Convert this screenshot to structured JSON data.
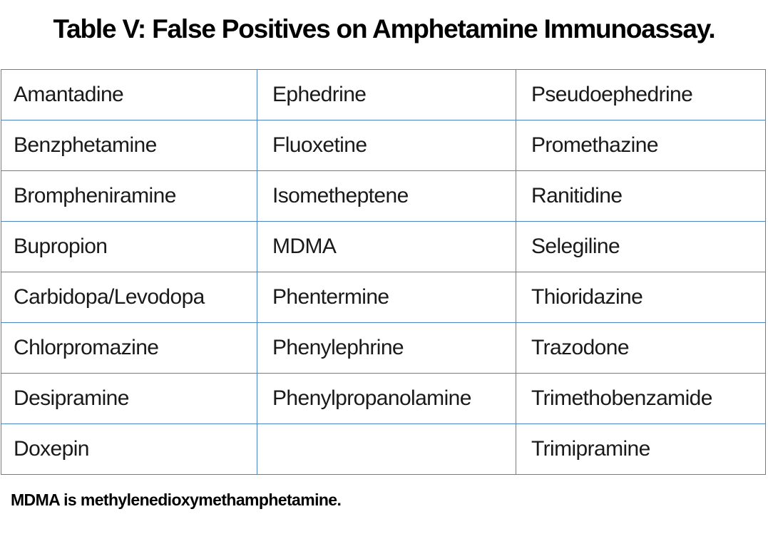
{
  "title": "Table V: False Positives on Amphetamine Immunoassay.",
  "rows": [
    [
      "Amantadine",
      "Ephedrine",
      "Pseudoephedrine"
    ],
    [
      "Benzphetamine",
      "Fluoxetine",
      "Promethazine"
    ],
    [
      "Brompheniramine",
      "Isometheptene",
      "Ranitidine"
    ],
    [
      "Bupropion",
      "MDMA",
      "Selegiline"
    ],
    [
      "Carbidopa/Levodopa",
      "Phentermine",
      "Thioridazine"
    ],
    [
      "Chlorpromazine",
      "Phenylephrine",
      "Trazodone"
    ],
    [
      "Desipramine",
      "Phenylpropanolamine",
      "Trimethobenzamide"
    ],
    [
      "Doxepin",
      "",
      "Trimipramine"
    ]
  ],
  "footnote": "MDMA is methylenedioxymethamphetamine.",
  "colors": {
    "border": "#4a86c5",
    "text": "#1a1a1a"
  }
}
